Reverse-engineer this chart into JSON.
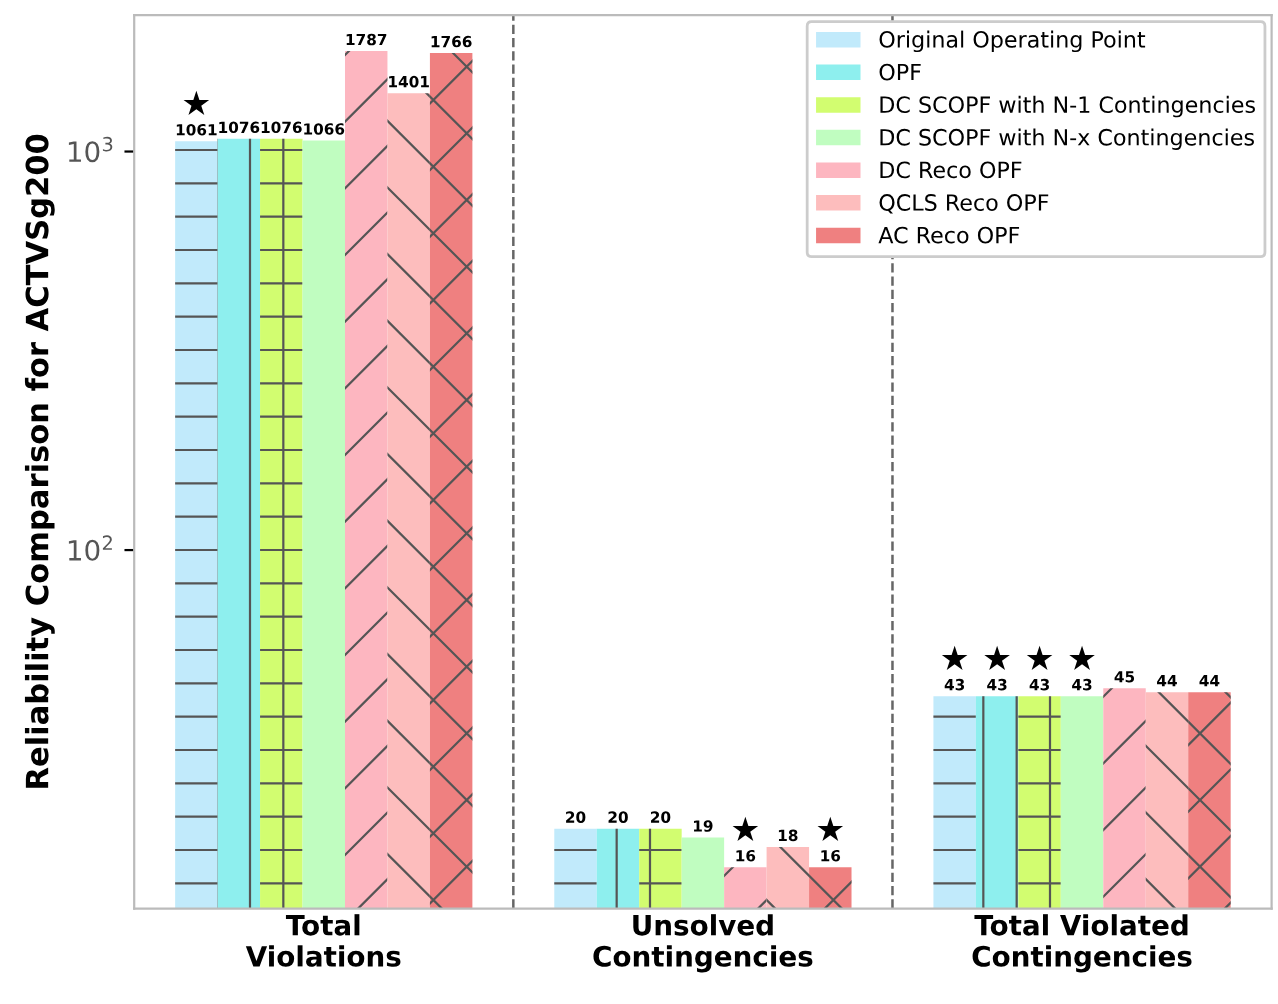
{
  "chart_data": {
    "type": "bar",
    "ylabel": "Reliability Comparison for ACTVSg200",
    "categories": [
      "Total\nViolations",
      "Unsolved\nContingencies",
      "Total Violated\nContingencies"
    ],
    "series": [
      {
        "name": "Original Operating Point",
        "color": "#c1eafb",
        "values": [
          1061,
          20,
          43
        ]
      },
      {
        "name": "OPF",
        "color": "#8eefee",
        "values": [
          1076,
          20,
          43
        ]
      },
      {
        "name": "DC SCOPF with N-1 Contingencies",
        "color": "#d2fd70",
        "values": [
          1076,
          20,
          43
        ]
      },
      {
        "name": "DC SCOPF with N-x Contingencies",
        "color": "#c0fdc0",
        "values": [
          1066,
          19,
          43
        ]
      },
      {
        "name": "DC Reco OPF",
        "color": "#fdb6c0",
        "values": [
          1787,
          16,
          45
        ]
      },
      {
        "name": "QCLS Reco OPF",
        "color": "#fdbdbd",
        "values": [
          1401,
          18,
          44
        ]
      },
      {
        "name": "AC Reco OPF",
        "color": "#ef8080",
        "values": [
          1766,
          16,
          44
        ]
      }
    ],
    "log": "y",
    "ylim": [
      12.6,
      2200
    ],
    "yticks": [
      {
        "value": 100,
        "label": "10$^{2}$"
      },
      {
        "value": 1000,
        "label": "10$^{3}$"
      }
    ],
    "data_labels": true,
    "grid": false,
    "legend": "top right",
    "annotations": [
      "★",
      "★",
      "★",
      "★",
      "★",
      "★",
      "★"
    ]
  }
}
